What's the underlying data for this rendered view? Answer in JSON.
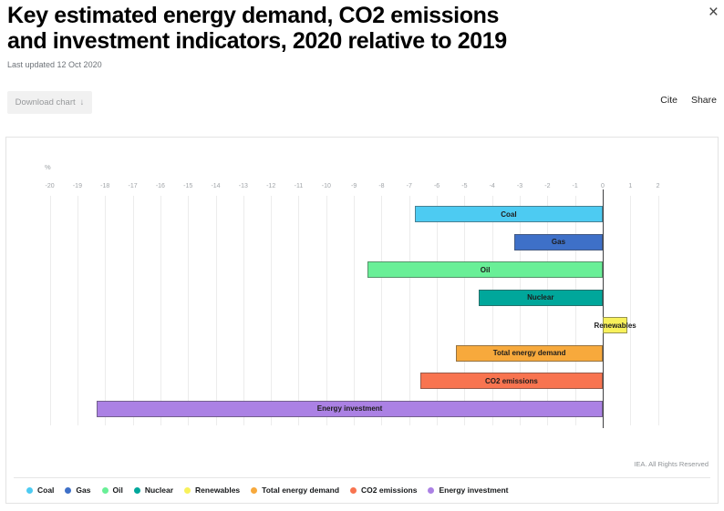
{
  "header": {
    "title_line1": "Key estimated energy demand, CO2 emissions",
    "title_line2": "and investment indicators, 2020 relative to 2019",
    "last_updated": "Last updated 12 Oct 2020",
    "close_icon": "×"
  },
  "toolbar": {
    "download_label": "Download chart",
    "download_arrow": "↓",
    "cite_label": "Cite",
    "share_label": "Share"
  },
  "chart_data": {
    "type": "bar",
    "orientation": "horizontal",
    "title": "Key estimated energy demand, CO2 emissions and investment indicators, 2020 relative to 2019",
    "unit_label": "%",
    "xlabel": "%",
    "categories": [
      "Coal",
      "Gas",
      "Oil",
      "Nuclear",
      "Renewables",
      "Total energy demand",
      "CO2 emissions",
      "Energy investment"
    ],
    "values": [
      -6.8,
      -3.2,
      -8.5,
      -4.5,
      0.9,
      -5.3,
      -6.6,
      -18.3
    ],
    "colors": [
      "#4DCBF2",
      "#3E70C8",
      "#69EF97",
      "#00A79B",
      "#F8F15B",
      "#F7A93C",
      "#F87450",
      "#AB81E4"
    ],
    "xlim": [
      -20,
      2
    ],
    "tick_step": 1,
    "grid": true,
    "zero_line": true,
    "legend_position": "bottom"
  },
  "footer": {
    "rights": "IEA. All Rights Reserved"
  }
}
